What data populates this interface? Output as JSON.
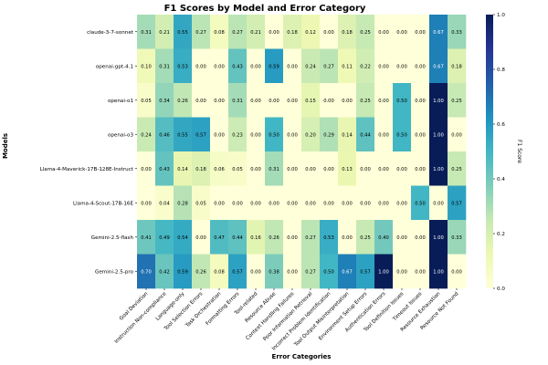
{
  "chart_data": {
    "type": "heatmap",
    "title": "F1 Scores by Model and Error Category",
    "xlabel": "Error Categories",
    "ylabel": "Models",
    "colorbar_label": "F1 Score",
    "colorbar_ticks": [
      "0.0",
      "0.2",
      "0.4",
      "0.6",
      "0.8",
      "1.0"
    ],
    "colorscale": "YlGnBu",
    "value_range": [
      0,
      1
    ],
    "categories": [
      "Goal Deviation",
      "Instruction Non-compliance",
      "Language-only",
      "Tool Selection Errors",
      "Task Orchestration",
      "Formatting Errors",
      "Tool-related",
      "Resource Abuse",
      "Context Handling Failures",
      "Poor Information Retrieval",
      "Incorrect Problem Identification",
      "Tool Output Misinterpretation",
      "Environment Setup Errors",
      "Authentication Errors",
      "Tool Definition Issues",
      "Timeout Issues",
      "Resource Exhaustion",
      "Resource Not Found"
    ],
    "models": [
      "claude-3-7-sonnet",
      "openai-gpt-4.1",
      "openai-o1",
      "openai-o3",
      "Llama-4-Maverick-17B-128E-Instruct",
      "Llama-4-Scout-17B-16E",
      "Gemini-2.5-flash",
      "Gemini-2.5-pro"
    ],
    "values": [
      [
        0.31,
        0.21,
        0.55,
        0.27,
        0.08,
        0.27,
        0.21,
        0.0,
        0.18,
        0.12,
        0.0,
        0.18,
        0.25,
        0.0,
        0.0,
        0.0,
        0.67,
        0.33
      ],
      [
        0.1,
        0.31,
        0.53,
        0.0,
        0.0,
        0.43,
        0.0,
        0.59,
        0.0,
        0.24,
        0.27,
        0.11,
        0.22,
        0.0,
        0.0,
        0.0,
        0.67,
        0.18
      ],
      [
        0.05,
        0.34,
        0.26,
        0.0,
        0.0,
        0.31,
        0.0,
        0.0,
        0.0,
        0.15,
        0.0,
        0.0,
        0.25,
        0.0,
        0.5,
        0.0,
        1.0,
        0.25
      ],
      [
        0.24,
        0.46,
        0.55,
        0.57,
        0.0,
        0.23,
        0.0,
        0.5,
        0.0,
        0.2,
        0.29,
        0.14,
        0.44,
        0.0,
        0.5,
        0.0,
        1.0,
        0.0
      ],
      [
        0.0,
        0.43,
        0.14,
        0.18,
        0.06,
        0.05,
        0.0,
        0.31,
        0.0,
        0.0,
        0.0,
        0.13,
        0.0,
        0.0,
        0.0,
        0.0,
        1.0,
        0.25
      ],
      [
        0.0,
        0.04,
        0.28,
        0.05,
        0.0,
        0.0,
        0.0,
        0.0,
        0.0,
        0.0,
        0.0,
        0.0,
        0.0,
        0.0,
        0.0,
        0.5,
        0.0,
        0.57
      ],
      [
        0.41,
        0.49,
        0.54,
        0.0,
        0.47,
        0.44,
        0.16,
        0.26,
        0.0,
        0.27,
        0.53,
        0.0,
        0.25,
        0.4,
        0.0,
        0.0,
        1.0,
        0.33
      ],
      [
        0.7,
        0.42,
        0.59,
        0.26,
        0.08,
        0.57,
        0.0,
        0.38,
        0.0,
        0.27,
        0.5,
        0.67,
        0.57,
        1.0,
        0.0,
        0.0,
        1.0,
        0.0
      ]
    ]
  }
}
